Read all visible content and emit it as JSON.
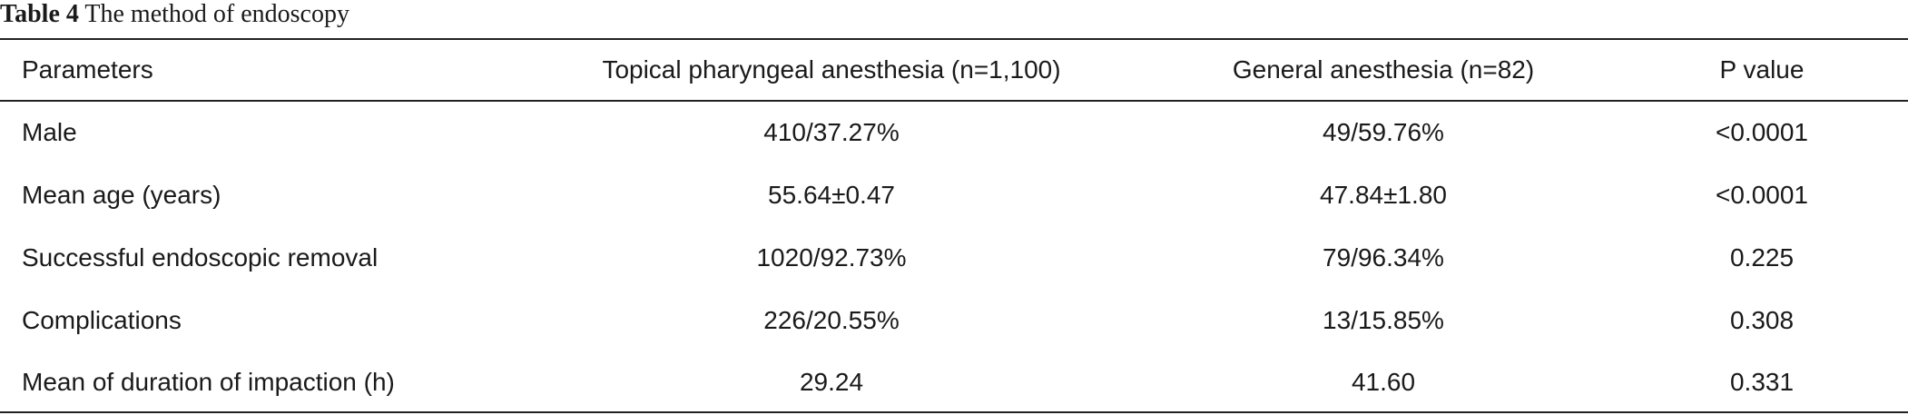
{
  "caption": {
    "label": "Table 4",
    "text": "The method of endoscopy"
  },
  "table": {
    "columns": [
      "Parameters",
      "Topical pharyngeal anesthesia (n=1,100)",
      "General anesthesia (n=82)",
      "P value"
    ],
    "rows": [
      [
        "Male",
        "410/37.27%",
        "49/59.76%",
        "<0.0001"
      ],
      [
        "Mean age (years)",
        "55.64±0.47",
        "47.84±1.80",
        "<0.0001"
      ],
      [
        "Successful endoscopic removal",
        "1020/92.73%",
        "79/96.34%",
        "0.225"
      ],
      [
        "Complications",
        "226/20.55%",
        "13/15.85%",
        "0.308"
      ],
      [
        "Mean of duration of impaction (h)",
        "29.24",
        "41.60",
        "0.331"
      ]
    ]
  }
}
